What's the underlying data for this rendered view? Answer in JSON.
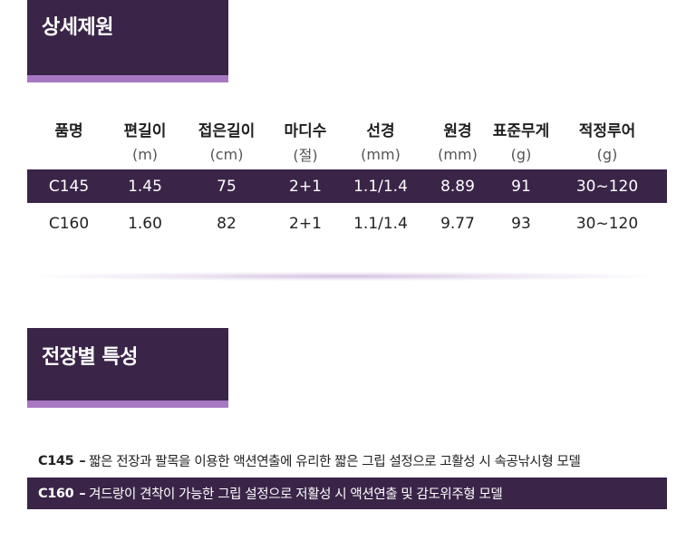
{
  "sections": {
    "specs_title": "상세제원",
    "features_title": "전장별 특성"
  },
  "spec_table": {
    "headers": [
      "품명",
      "편길이",
      "접은길이",
      "마디수",
      "선경",
      "원경",
      "표준무게",
      "적정루어"
    ],
    "units": [
      "",
      "(m)",
      "(cm)",
      "(절)",
      "(mm)",
      "(mm)",
      "(g)",
      "(g)"
    ],
    "rows": [
      [
        "C145",
        "1.45",
        "75",
        "2+1",
        "1.1/1.4",
        "8.89",
        "91",
        "30~120"
      ],
      [
        "C160",
        "1.60",
        "82",
        "2+1",
        "1.1/1.4",
        "9.77",
        "93",
        "30~120"
      ]
    ]
  },
  "features": [
    {
      "model": "C145",
      "separator": "–",
      "text": "짧은 전장과 팔목을 이용한 액션연출에 유리한 짧은 그립 설정으로 고활성 시 속공낚시형 모델"
    },
    {
      "model": "C160",
      "separator": "–",
      "text": "겨드랑이 견착이 가능한 그립 설정으로 저활성 시 액션연출 및 감도위주형 모델"
    }
  ],
  "colors": {
    "dark_purple": "#3a2548",
    "accent_purple": "#a877c4"
  }
}
